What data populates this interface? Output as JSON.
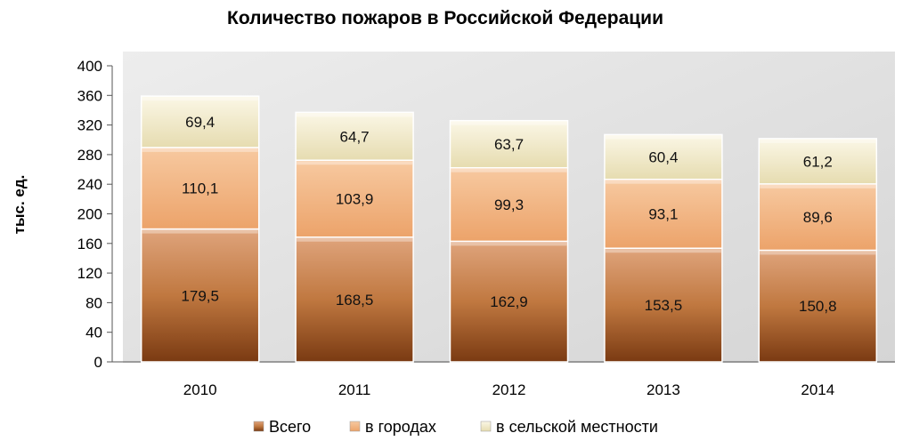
{
  "chart_data": {
    "type": "bar",
    "stacked": true,
    "title": "Количество пожаров в Российской Федерации",
    "xlabel": "",
    "ylabel": "тыс. ед.",
    "ylim": [
      0,
      400
    ],
    "yticks": [
      0,
      40,
      80,
      120,
      160,
      200,
      240,
      280,
      320,
      360,
      400
    ],
    "ytick_labels": [
      "0",
      "40",
      "80",
      "120",
      "160",
      "200",
      "240",
      "280",
      "320",
      "360",
      "400"
    ],
    "categories": [
      "2010",
      "2011",
      "2012",
      "2013",
      "2014"
    ],
    "series": [
      {
        "name": "Всего",
        "values": [
          179.5,
          168.5,
          162.9,
          153.5,
          150.8
        ],
        "labels": [
          "179,5",
          "168,5",
          "162,9",
          "153,5",
          "150,8"
        ],
        "color": "#b86a33"
      },
      {
        "name": "в городах",
        "values": [
          110.1,
          103.9,
          99.3,
          93.1,
          89.6
        ],
        "labels": [
          "110,1",
          "103,9",
          "99,3",
          "93,1",
          "89,6"
        ],
        "color": "#f2b07a"
      },
      {
        "name": "в сельской местности",
        "values": [
          69.4,
          64.7,
          63.7,
          60.4,
          61.2
        ],
        "labels": [
          "69,4",
          "64,7",
          "63,7",
          "60,4",
          "61,2"
        ],
        "color": "#f3eccd"
      }
    ],
    "grid": false,
    "legend_position": "bottom"
  }
}
